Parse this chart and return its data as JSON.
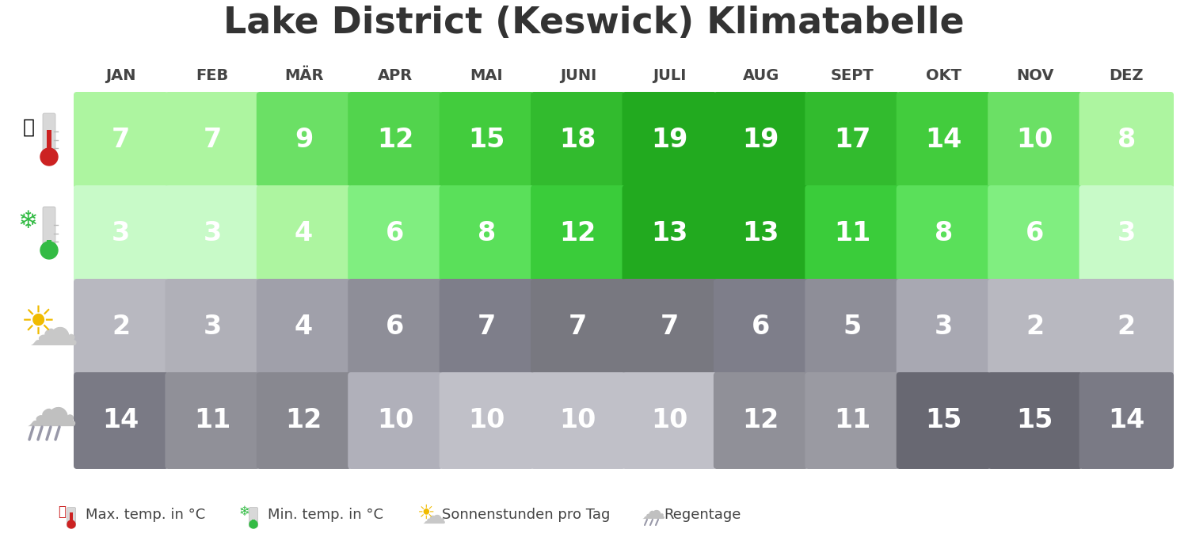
{
  "title": "Lake District (Keswick) Klimatabelle",
  "months": [
    "JAN",
    "FEB",
    "MÄR",
    "APR",
    "MAI",
    "JUNI",
    "JULI",
    "AUG",
    "SEPT",
    "OKT",
    "NOV",
    "DEZ"
  ],
  "max_temp": [
    7,
    7,
    9,
    12,
    15,
    18,
    19,
    19,
    17,
    14,
    10,
    8
  ],
  "min_temp": [
    3,
    3,
    4,
    6,
    8,
    12,
    13,
    13,
    11,
    8,
    6,
    3
  ],
  "sunshine": [
    2,
    3,
    4,
    6,
    7,
    7,
    7,
    6,
    5,
    3,
    2,
    2
  ],
  "rain_days": [
    14,
    11,
    12,
    10,
    10,
    10,
    10,
    12,
    11,
    15,
    15,
    14
  ],
  "max_temp_colors": [
    "#adf5a0",
    "#adf5a0",
    "#6be065",
    "#52d44d",
    "#42cc3d",
    "#32bb2e",
    "#22aa1f",
    "#22aa1f",
    "#32bb2e",
    "#42cc3d",
    "#6be065",
    "#adf5a0"
  ],
  "min_temp_colors": [
    "#c8fac8",
    "#c8fac8",
    "#adf5a0",
    "#80ee80",
    "#5ae05a",
    "#3acc3a",
    "#22aa1f",
    "#22aa1f",
    "#3acc3a",
    "#5ae05a",
    "#80ee80",
    "#c8fac8"
  ],
  "sunshine_colors": [
    "#b8b8c0",
    "#b0b0b8",
    "#a0a0aa",
    "#8e8e98",
    "#7e7e8a",
    "#787880",
    "#787880",
    "#7e7e8a",
    "#8e8e98",
    "#a8a8b2",
    "#b8b8c0",
    "#b8b8c0"
  ],
  "rain_colors": [
    "#7a7a85",
    "#909098",
    "#888890",
    "#b0b0ba",
    "#c0c0c8",
    "#c0c0c8",
    "#c0c0c8",
    "#909098",
    "#9a9aa2",
    "#686872",
    "#686872",
    "#7a7a85"
  ],
  "text_color": "#ffffff",
  "background_color": "#ffffff",
  "title_color": "#333333",
  "month_color": "#444444"
}
